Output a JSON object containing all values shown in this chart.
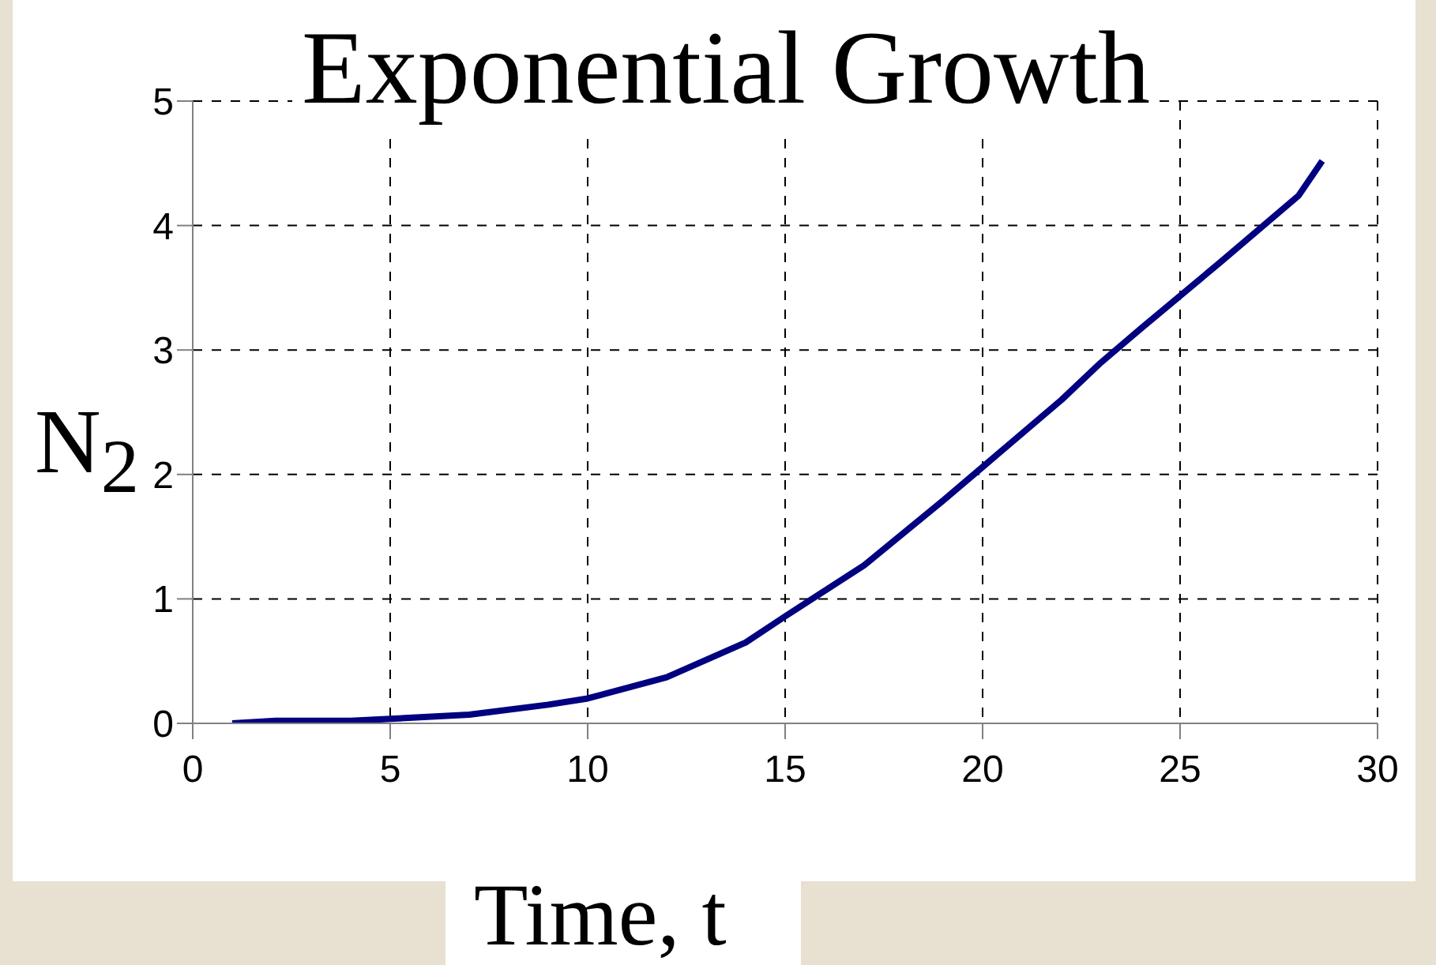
{
  "chart_data": {
    "type": "line",
    "title": "Exponential Growth",
    "xlabel": "Time, t",
    "ylabel": "N$_{2}$",
    "x": [
      1,
      2.1,
      4,
      7,
      9,
      10,
      12,
      14,
      15,
      17,
      19,
      20,
      22,
      23,
      24,
      26,
      28,
      28.6
    ],
    "series": [
      {
        "color": "#000080",
        "values": [
          0,
          0.02,
          0.02,
          0.07,
          0.15,
          0.2,
          0.37,
          0.65,
          0.86,
          1.27,
          1.79,
          2.06,
          2.6,
          2.9,
          3.17,
          3.7,
          4.24,
          4.52
        ]
      }
    ],
    "xlim": [
      0,
      30
    ],
    "xticks": [
      0,
      5,
      10,
      15,
      20,
      25,
      30
    ],
    "ylim": [
      0,
      5
    ],
    "yticks": [
      0,
      1,
      2,
      3,
      4,
      5
    ],
    "grid": true,
    "legend": false,
    "marker": "none",
    "line_style": "solid"
  }
}
